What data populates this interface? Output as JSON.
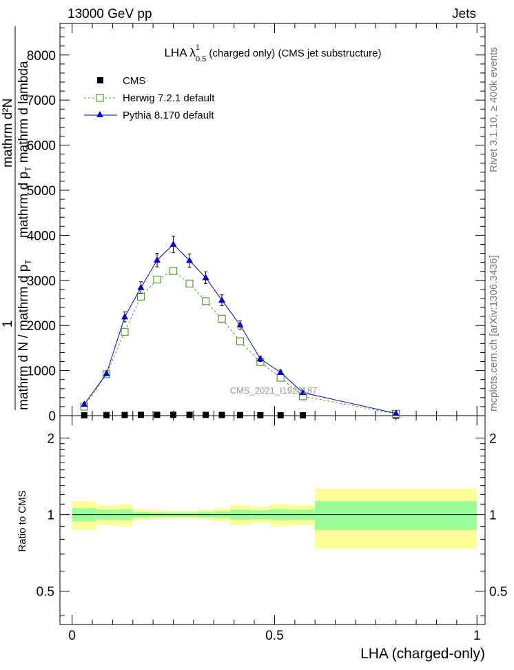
{
  "header": {
    "left": "13000 GeV pp",
    "right": "Jets"
  },
  "side_labels": {
    "rivet": "Rivet 3.1.10, ≥ 400k events",
    "mcplots": "mcplots.cern.ch [arXiv:1306.3436]"
  },
  "watermark": "CMS_2021_I1920187",
  "chart_data": [
    {
      "type": "line",
      "title": {
        "prefix": "LHA λ",
        "sup": "1",
        "sub": "0.5",
        "suffix": " (charged only) (CMS jet substructure)"
      },
      "ylabel": {
        "one": "1",
        "den": "mathrm d N / mathrm d p",
        "den_sub": "T",
        "num": "mathrm d²N",
        "num_den": "mathrm d p",
        "num_den_sub": "T",
        "num_den_tail": " mathrm d lambda"
      },
      "xlim": [
        -0.03,
        1.02
      ],
      "ylim": [
        0,
        8700
      ],
      "yticks": [
        0,
        1000,
        2000,
        3000,
        4000,
        5000,
        6000,
        7000,
        8000
      ],
      "ytick_labels": [
        "0",
        "1000",
        "2000",
        "3000",
        "4000",
        "5000",
        "6000",
        "7000",
        "8000"
      ],
      "legend_position": "top-left",
      "series": [
        {
          "name": "CMS",
          "color": "#000000",
          "marker": "square",
          "x": [
            0.03,
            0.085,
            0.13,
            0.17,
            0.21,
            0.25,
            0.29,
            0.33,
            0.37,
            0.415,
            0.465,
            0.515,
            0.57,
            0.8
          ],
          "values": [
            8,
            12,
            14,
            18,
            18,
            19,
            18,
            17,
            15,
            13,
            11,
            9,
            7,
            2
          ]
        },
        {
          "name": "Herwig 7.2.1 default",
          "color": "#4d9a2a",
          "marker": "open-square",
          "dashed": true,
          "x": [
            0.03,
            0.085,
            0.13,
            0.17,
            0.21,
            0.25,
            0.29,
            0.33,
            0.37,
            0.415,
            0.465,
            0.515,
            0.57,
            0.8
          ],
          "values": [
            200,
            920,
            1860,
            2640,
            3020,
            3210,
            2930,
            2540,
            2150,
            1650,
            1190,
            840,
            430,
            40
          ]
        },
        {
          "name": "Pythia 8.170 default",
          "color": "#0000cc",
          "marker": "triangle",
          "dashed": false,
          "x": [
            0.03,
            0.085,
            0.13,
            0.17,
            0.21,
            0.25,
            0.29,
            0.33,
            0.37,
            0.415,
            0.465,
            0.515,
            0.57,
            0.8
          ],
          "values": [
            250,
            930,
            2190,
            2840,
            3450,
            3800,
            3440,
            3060,
            2560,
            2010,
            1260,
            960,
            510,
            50
          ],
          "errors": [
            20,
            30,
            110,
            130,
            150,
            180,
            150,
            130,
            120,
            90,
            60,
            50,
            30,
            10
          ]
        }
      ]
    },
    {
      "type": "area",
      "ylabel": "Ratio to CMS",
      "xlabel": "LHA (charged-only)",
      "xlim": [
        -0.03,
        1.02
      ],
      "ylim": [
        0.37,
        2.45
      ],
      "log_scale": true,
      "yticks": [
        0.5,
        1,
        2
      ],
      "ytick_labels": [
        "0.5",
        "1",
        "2"
      ],
      "xticks": [
        0,
        0.5,
        1
      ],
      "xtick_labels": [
        "0",
        "0.5",
        "1"
      ],
      "reference_line": 1,
      "bins": [
        0,
        0.06,
        0.11,
        0.15,
        0.19,
        0.23,
        0.27,
        0.31,
        0.35,
        0.39,
        0.44,
        0.49,
        0.54,
        0.6,
        1.0
      ],
      "stat_band": [
        0.06,
        0.045,
        0.05,
        0.025,
        0.02,
        0.02,
        0.02,
        0.025,
        0.03,
        0.045,
        0.04,
        0.05,
        0.045,
        0.13
      ],
      "total_band": [
        0.13,
        0.09,
        0.1,
        0.05,
        0.04,
        0.035,
        0.035,
        0.045,
        0.06,
        0.09,
        0.075,
        0.1,
        0.09,
        0.265
      ],
      "stat_color": "#99ff99",
      "total_color": "#ffff99"
    }
  ]
}
